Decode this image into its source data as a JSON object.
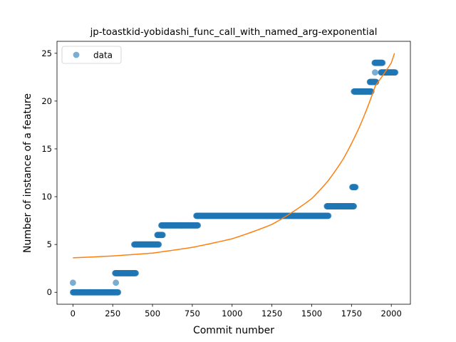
{
  "chart_data": {
    "type": "scatter",
    "title": "jp-toastkid-yobidashi_func_call_with_named_arg-exponential",
    "xlabel": "Commit number",
    "ylabel": "Number of instance of a feature",
    "xlim": [
      -100,
      2120
    ],
    "ylim": [
      -1.25,
      26.25
    ],
    "xticks": [
      0,
      250,
      500,
      750,
      1000,
      1250,
      1500,
      1750,
      2000
    ],
    "yticks": [
      0,
      5,
      10,
      15,
      20,
      25
    ],
    "grid": false,
    "legend": {
      "position": "top-left",
      "entries": [
        "data"
      ]
    },
    "colors": {
      "data": "#1f77b4",
      "fit": "#ff7f0e"
    },
    "series": [
      {
        "name": "data",
        "kind": "scatter",
        "segments": [
          {
            "x": [
              0,
              285
            ],
            "y": 0
          },
          {
            "x": [
              265,
              395
            ],
            "y": 2
          },
          {
            "x": [
              385,
              540
            ],
            "y": 5
          },
          {
            "x": [
              530,
              565
            ],
            "y": 6
          },
          {
            "x": [
              555,
              785
            ],
            "y": 7
          },
          {
            "x": [
              775,
              1605
            ],
            "y": 8
          },
          {
            "x": [
              1595,
              1765
            ],
            "y": 9
          },
          {
            "x": [
              1755,
              1775
            ],
            "y": 11
          },
          {
            "x": [
              1765,
              1875
            ],
            "y": 21
          },
          {
            "x": [
              1865,
              1905
            ],
            "y": 22
          },
          {
            "x": [
              1895,
              1945
            ],
            "y": 24
          },
          {
            "x": [
              1935,
              2025
            ],
            "y": 23
          }
        ],
        "outliers": [
          {
            "x": 0,
            "y": 1
          },
          {
            "x": 270,
            "y": 1
          },
          {
            "x": 1898,
            "y": 23
          }
        ]
      },
      {
        "kind": "line",
        "x": [
          0,
          250,
          500,
          750,
          1000,
          1250,
          1500,
          1600,
          1700,
          1800,
          1900,
          2000,
          2020
        ],
        "y": [
          3.6,
          3.8,
          4.1,
          4.7,
          5.6,
          7.1,
          9.8,
          11.6,
          14.0,
          17.3,
          21.6,
          24.0,
          25.0
        ]
      }
    ]
  }
}
